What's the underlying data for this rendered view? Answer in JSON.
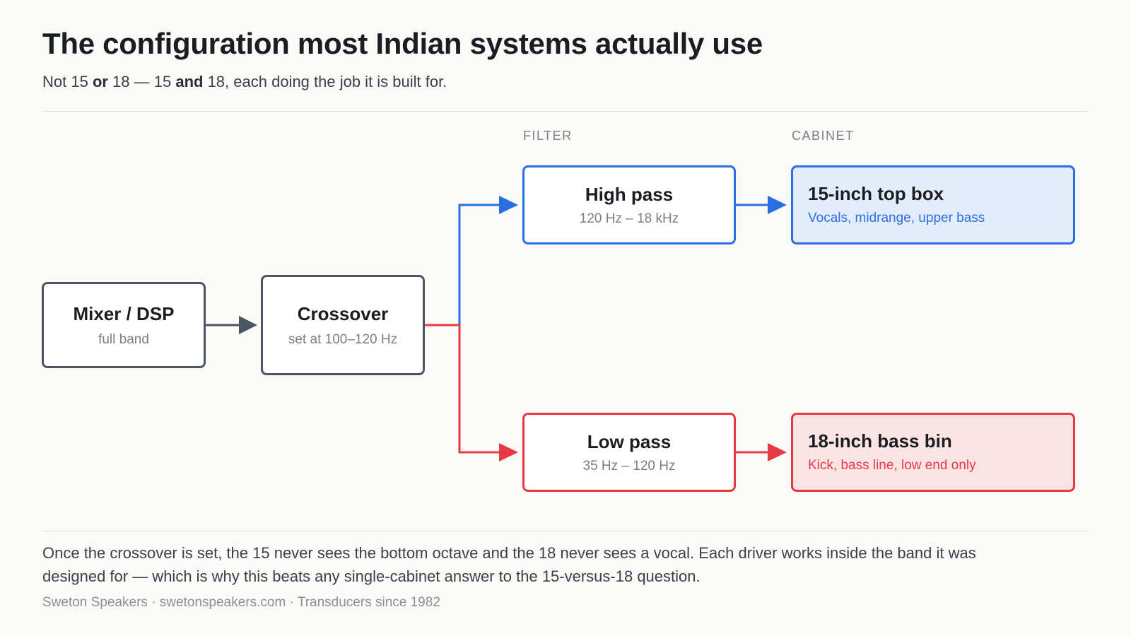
{
  "title": "The configuration most Indian systems actually use",
  "subtitle": {
    "part1": "Not 15 ",
    "bold1": "or",
    "part2": " 18 — 15 ",
    "bold2": "and",
    "part3": " 18, each doing the job it is built for."
  },
  "column_labels": {
    "filter": "FILTER",
    "cabinet": "CABINET"
  },
  "nodes": {
    "mixer": {
      "title": "Mixer / DSP",
      "subtitle": "full band"
    },
    "crossover": {
      "title": "Crossover",
      "subtitle": "set at 100–120 Hz"
    },
    "high_pass": {
      "title": "High pass",
      "subtitle": "120 Hz – 18 kHz"
    },
    "low_pass": {
      "title": "Low pass",
      "subtitle": "35 Hz – 120 Hz"
    },
    "top_box": {
      "title": "15-inch top box",
      "subtitle": "Vocals, midrange, upper bass"
    },
    "bass_bin": {
      "title": "18-inch bass bin",
      "subtitle": "Kick, bass line, low end only"
    }
  },
  "colors": {
    "neutral": "#4b5563",
    "high_path": "#2a6fe0",
    "low_path": "#e63946",
    "high_fill": "#e3ecfb",
    "low_fill": "#fce4e5"
  },
  "caption": "Once the crossover is set, the 15 never sees the bottom octave and the 18 never sees a vocal. Each driver works inside the band it was designed for — which is why this beats any single-cabinet answer to the 15-versus-18 question.",
  "footer": "Sweton Speakers · swetonspeakers.com · Transducers since 1982"
}
